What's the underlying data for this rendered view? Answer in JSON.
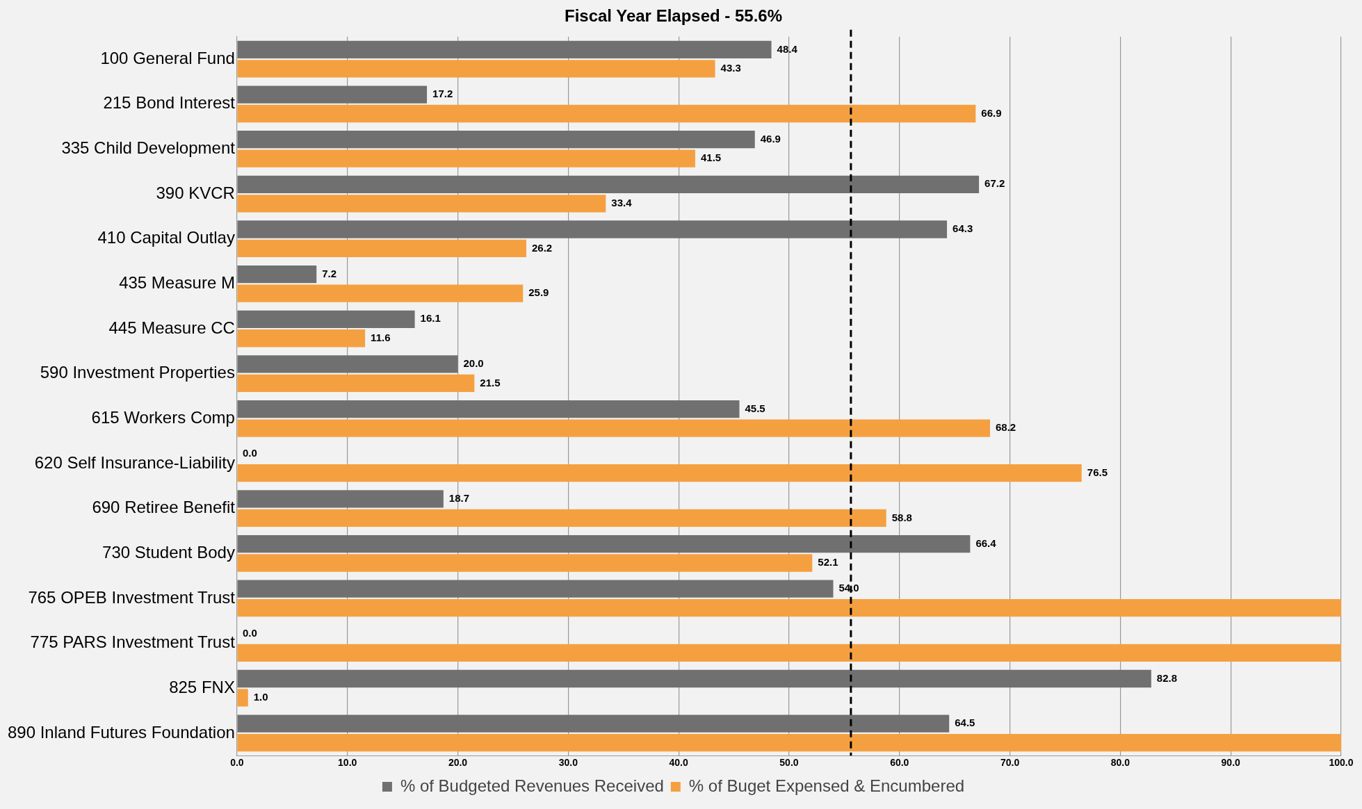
{
  "chart_data": {
    "type": "bar",
    "orientation": "horizontal",
    "title": "Fiscal Year Elapsed - 55.6%",
    "categories": [
      "100 General Fund",
      "215 Bond Interest",
      "335 Child Development",
      "390 KVCR",
      "410 Capital Outlay",
      "435 Measure M",
      "445 Measure CC",
      "590 Investment Properties",
      "615 Workers Comp",
      "620 Self Insurance-Liability",
      "690 Retiree Benefit",
      "730 Student Body",
      "765 OPEB Investment Trust",
      "775 PARS Investment Trust",
      "825 FNX",
      "890 Inland Futures Foundation"
    ],
    "series": [
      {
        "name": "% of Budgeted Revenues Received",
        "color": "#707070",
        "values": [
          48.4,
          17.2,
          46.9,
          67.2,
          64.3,
          7.2,
          16.1,
          20.0,
          45.5,
          0.0,
          18.7,
          66.4,
          54.0,
          0.0,
          82.8,
          64.5
        ],
        "value_labels": [
          "48.4",
          "17.2",
          "46.9",
          "67.2",
          "64.3",
          "7.2",
          "16.1",
          "20.0",
          "45.5",
          "0.0",
          "18.7",
          "66.4",
          "54.0",
          "0.0",
          "82.8",
          "64.5"
        ]
      },
      {
        "name": "% of Buget Expensed & Encumbered",
        "color": "#f5a040",
        "values": [
          43.3,
          66.9,
          41.5,
          33.4,
          26.2,
          25.9,
          11.6,
          21.5,
          68.2,
          76.5,
          58.8,
          52.1,
          100,
          100,
          1.0,
          100
        ],
        "value_labels": [
          "43.3",
          "66.9",
          "41.5",
          "33.4",
          "26.2",
          "25.9",
          "11.6",
          "21.5",
          "68.2",
          "76.5",
          "58.8",
          "52.1",
          null,
          null,
          "1.0",
          null
        ]
      }
    ],
    "xlim": [
      0,
      100
    ],
    "xticks": [
      {
        "value": 0,
        "label": "0.0"
      },
      {
        "value": 10,
        "label": "10.0"
      },
      {
        "value": 20,
        "label": "20.0"
      },
      {
        "value": 30,
        "label": "30.0"
      },
      {
        "value": 40,
        "label": "40.0"
      },
      {
        "value": 50,
        "label": "50.0"
      },
      {
        "value": 60,
        "label": "60.0"
      },
      {
        "value": 70,
        "label": "70.0"
      },
      {
        "value": 80,
        "label": "80.0"
      },
      {
        "value": 90,
        "label": "90.0"
      },
      {
        "value": 100,
        "label": "100.0"
      }
    ],
    "ref_lines": [
      {
        "axis": "x",
        "value": 55.6,
        "line_style": "dashed",
        "color": "#000000"
      }
    ],
    "grid": "x",
    "legend": "bottom"
  }
}
